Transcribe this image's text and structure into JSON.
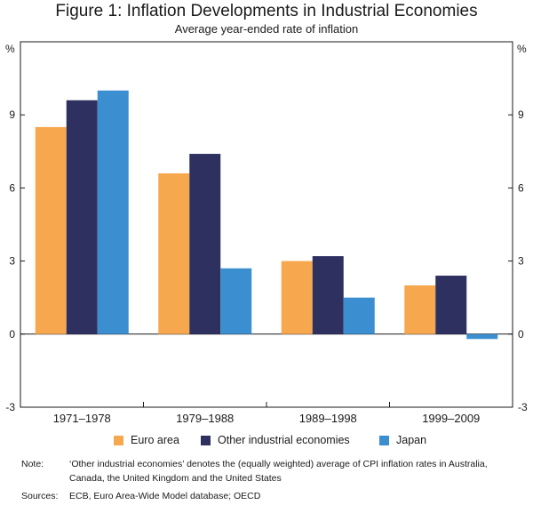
{
  "header": {
    "title": "Figure 1: Inflation Developments in Industrial Economies",
    "subtitle": "Average year-ended rate of inflation"
  },
  "chart_data": {
    "type": "bar",
    "title": "Figure 1: Inflation Developments in Industrial Economies",
    "subtitle": "Average year-ended rate of inflation",
    "categories": [
      "1971–1978",
      "1979–1988",
      "1989–1998",
      "1999–2009"
    ],
    "series": [
      {
        "name": "Euro area",
        "color": "#f7a84e",
        "values": [
          8.5,
          6.6,
          3.0,
          2.0
        ]
      },
      {
        "name": "Other industrial economies",
        "color": "#2e3160",
        "values": [
          9.6,
          7.4,
          3.2,
          2.4
        ]
      },
      {
        "name": "Japan",
        "color": "#3b8fd0",
        "values": [
          10.0,
          2.7,
          1.5,
          -0.2
        ]
      }
    ],
    "ylim": [
      -3,
      12
    ],
    "yticks": [
      -3,
      0,
      3,
      6,
      9
    ],
    "ylabel_left": "%",
    "ylabel_right": "%",
    "xlabel": "",
    "legend_position": "bottom"
  },
  "notes": {
    "note_label": "Note:",
    "note_text": "‘Other industrial economies’ denotes the (equally weighted) average of CPI inflation rates in Australia, Canada, the United Kingdom and the United States",
    "sources_label": "Sources:",
    "sources_text": "ECB, Euro Area-Wide Model database; OECD"
  }
}
